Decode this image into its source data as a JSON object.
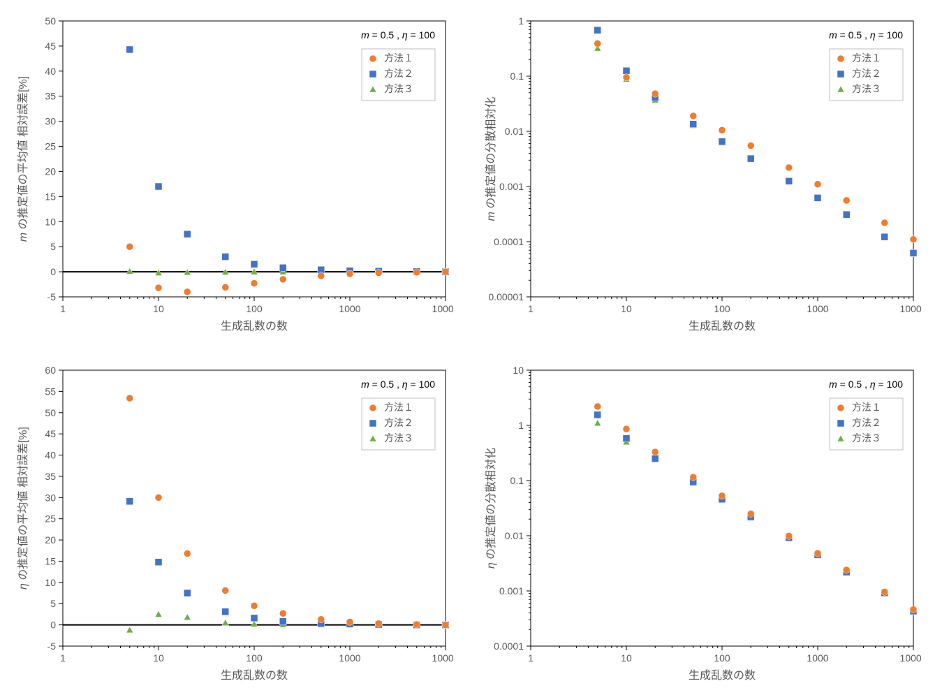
{
  "global": {
    "annotation": "m = 0.5 , η = 100",
    "xlabel": "生成乱数の数",
    "legend": [
      "方法１",
      "方法２",
      "方法３"
    ],
    "colors": {
      "s1": "#ed7d31",
      "s2": "#4472c4",
      "s3": "#70ad47"
    },
    "markers": {
      "s1": "circle",
      "s2": "square",
      "s3": "triangle"
    },
    "marker_size": 5,
    "x_values": [
      5,
      10,
      20,
      50,
      100,
      200,
      500,
      1000,
      2000,
      5000,
      10000
    ],
    "x_ticks": [
      1,
      10,
      100,
      1000,
      10000
    ],
    "x_tick_labels": [
      "1",
      "10",
      "100",
      "1000",
      "10000"
    ],
    "tick_fontsize": 14,
    "axis_title_fontsize": 16,
    "background_color": "#ffffff",
    "grid_color": "#e0e0e0",
    "axis_color": "#000000",
    "tick_label_color": "#595959"
  },
  "panels": {
    "tl": {
      "ylabel": "m の推定値の平均値 相対誤差[%]",
      "ylabel_italic_first": "m",
      "yscale": "linear",
      "ylim": [
        -5,
        50
      ],
      "yticks": [
        -5,
        0,
        5,
        10,
        15,
        20,
        25,
        30,
        35,
        40,
        45,
        50
      ],
      "zero_line": true,
      "series": {
        "s1": [
          5.0,
          -3.2,
          -4.0,
          -3.1,
          -2.3,
          -1.5,
          -0.8,
          -0.4,
          -0.2,
          -0.1,
          0.0
        ],
        "s2": [
          44.3,
          17.0,
          7.5,
          3.0,
          1.5,
          0.8,
          0.4,
          0.2,
          0.1,
          0.05,
          0.0
        ],
        "s3": [
          0.1,
          -0.2,
          -0.1,
          -0.05,
          0.0,
          0.0,
          0.0,
          0.0,
          0.0,
          0.0,
          0.0
        ]
      }
    },
    "tr": {
      "ylabel": "m の推定値の分散相対化",
      "ylabel_italic_first": "m",
      "yscale": "log",
      "ylim": [
        1e-05,
        1
      ],
      "yticks": [
        1e-05,
        0.0001,
        0.001,
        0.01,
        0.1,
        1
      ],
      "ytick_labels": [
        "0.00001",
        "0.0001",
        "0.001",
        "0.01",
        "0.1",
        "1"
      ],
      "series": {
        "s1": [
          0.39,
          0.095,
          0.048,
          0.019,
          0.0105,
          0.0055,
          0.0022,
          0.0011,
          0.00056,
          0.00022,
          0.00011
        ],
        "s2": [
          0.68,
          0.125,
          0.041,
          0.0135,
          0.0065,
          0.0032,
          0.00125,
          0.00062,
          0.00031,
          0.000122,
          6.2e-05
        ],
        "s3": [
          0.32,
          0.088,
          0.037,
          0.0128,
          0.0062,
          0.0031,
          0.00122,
          0.0006,
          0.0003,
          0.00012,
          6e-05
        ]
      }
    },
    "bl": {
      "ylabel": "η の推定値の平均値 相対誤差[%]",
      "ylabel_italic_first": "η",
      "yscale": "linear",
      "ylim": [
        -5,
        60
      ],
      "yticks": [
        -5,
        0,
        5,
        10,
        15,
        20,
        25,
        30,
        35,
        40,
        45,
        50,
        55,
        60
      ],
      "zero_line": true,
      "series": {
        "s1": [
          53.4,
          30.0,
          16.8,
          8.1,
          4.5,
          2.7,
          1.3,
          0.7,
          0.3,
          0.1,
          0.0
        ],
        "s2": [
          29.1,
          14.8,
          7.5,
          3.1,
          1.6,
          0.8,
          0.3,
          0.2,
          0.1,
          0.0,
          0.0
        ],
        "s3": [
          -1.2,
          2.5,
          1.8,
          0.5,
          0.2,
          0.1,
          0.05,
          0.0,
          0.0,
          0.0,
          0.0
        ]
      }
    },
    "br": {
      "ylabel": "η の推定値の分散相対化",
      "ylabel_italic_first": "η",
      "yscale": "log",
      "ylim": [
        0.0001,
        10
      ],
      "yticks": [
        0.0001,
        0.001,
        0.01,
        0.1,
        1,
        10
      ],
      "ytick_labels": [
        "0.0001",
        "0.001",
        "0.01",
        "0.1",
        "1",
        "10"
      ],
      "series": {
        "s1": [
          2.2,
          0.86,
          0.33,
          0.115,
          0.053,
          0.025,
          0.0099,
          0.0048,
          0.0024,
          0.00096,
          0.00046
        ],
        "s2": [
          1.55,
          0.58,
          0.25,
          0.095,
          0.046,
          0.022,
          0.0092,
          0.0045,
          0.0022,
          0.00092,
          0.00043
        ],
        "s3": [
          1.1,
          0.5,
          0.24,
          0.09,
          0.044,
          0.021,
          0.009,
          0.0044,
          0.0021,
          0.0009,
          0.00042
        ]
      }
    }
  }
}
